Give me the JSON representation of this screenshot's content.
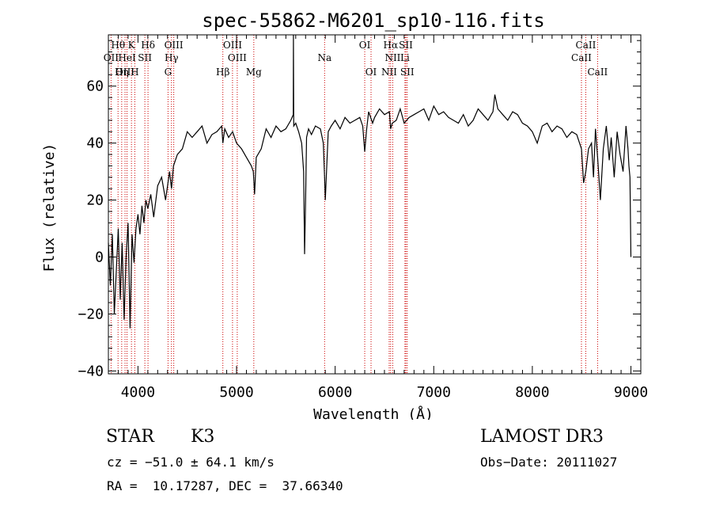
{
  "chart_data": {
    "type": "line",
    "title": "spec-55862-M6201_sp10-116.fits",
    "xlabel": "Wavelength (Å)",
    "ylabel": "Flux (relative)",
    "xlim": [
      3700,
      9100
    ],
    "ylim": [
      -41,
      78
    ],
    "xticks": [
      4000,
      5000,
      6000,
      7000,
      8000,
      9000
    ],
    "yticks": [
      -40,
      -20,
      0,
      20,
      40,
      60
    ],
    "spectrum": {
      "x": [
        3700,
        3720,
        3740,
        3760,
        3780,
        3800,
        3820,
        3840,
        3860,
        3880,
        3900,
        3920,
        3940,
        3960,
        3980,
        4000,
        4020,
        4040,
        4060,
        4080,
        4100,
        4130,
        4160,
        4200,
        4240,
        4280,
        4320,
        4340,
        4360,
        4400,
        4450,
        4500,
        4550,
        4600,
        4650,
        4700,
        4750,
        4800,
        4850,
        4861,
        4880,
        4920,
        4960,
        5000,
        5050,
        5100,
        5150,
        5170,
        5183,
        5200,
        5250,
        5300,
        5350,
        5400,
        5450,
        5500,
        5550,
        5575,
        5577,
        5580,
        5600,
        5630,
        5660,
        5680,
        5690,
        5700,
        5710,
        5730,
        5760,
        5800,
        5850,
        5880,
        5893,
        5900,
        5930,
        5960,
        6000,
        6050,
        6100,
        6150,
        6200,
        6250,
        6280,
        6300,
        6320,
        6340,
        6380,
        6400,
        6450,
        6500,
        6550,
        6563,
        6580,
        6620,
        6660,
        6700,
        6750,
        6800,
        6850,
        6900,
        6950,
        7000,
        7050,
        7100,
        7150,
        7200,
        7250,
        7300,
        7350,
        7400,
        7450,
        7500,
        7550,
        7600,
        7620,
        7650,
        7700,
        7750,
        7800,
        7850,
        7900,
        7950,
        8000,
        8050,
        8100,
        8150,
        8200,
        8250,
        8300,
        8350,
        8400,
        8450,
        8498,
        8520,
        8542,
        8570,
        8600,
        8620,
        8640,
        8662,
        8690,
        8720,
        8750,
        8780,
        8800,
        8830,
        8860,
        8890,
        8920,
        8950,
        8970,
        8980,
        8990,
        9000
      ],
      "y": [
        5,
        -10,
        8,
        -20,
        -5,
        10,
        -15,
        5,
        -22,
        0,
        12,
        -25,
        8,
        -2,
        10,
        15,
        8,
        18,
        12,
        20,
        17,
        22,
        14,
        25,
        28,
        20,
        30,
        24,
        32,
        36,
        38,
        44,
        42,
        44,
        46,
        40,
        43,
        44,
        46,
        40,
        45,
        42,
        44,
        40,
        38,
        35,
        32,
        30,
        22,
        35,
        38,
        45,
        42,
        46,
        44,
        45,
        48,
        50,
        78,
        46,
        47,
        44,
        40,
        30,
        1,
        20,
        42,
        45,
        43,
        46,
        45,
        40,
        28,
        20,
        44,
        46,
        48,
        45,
        49,
        47,
        48,
        49,
        46,
        37,
        45,
        51,
        47,
        49,
        52,
        50,
        51,
        45,
        47,
        48,
        52,
        47,
        49,
        50,
        51,
        52,
        48,
        53,
        50,
        51,
        49,
        48,
        47,
        50,
        46,
        48,
        52,
        50,
        48,
        51,
        57,
        52,
        50,
        48,
        51,
        50,
        47,
        46,
        44,
        40,
        46,
        47,
        44,
        46,
        45,
        42,
        44,
        43,
        38,
        26,
        30,
        38,
        40,
        28,
        45,
        35,
        20,
        38,
        46,
        34,
        42,
        28,
        44,
        36,
        30,
        46,
        38,
        32,
        28,
        0
      ]
    },
    "lines_row1": [
      {
        "label": "Hθ",
        "x": 3798
      },
      {
        "label": "K",
        "x": 3934
      },
      {
        "label": "Hδ",
        "x": 4102
      },
      {
        "label": "OIII",
        "x": 4363
      },
      {
        "label": "OIII",
        "x": 4959
      },
      {
        "label": "OI",
        "x": 6300
      },
      {
        "label": "Hα",
        "x": 6563
      },
      {
        "label": "SII",
        "x": 6717
      },
      {
        "label": "CaII",
        "x": 8542
      }
    ],
    "lines_row2": [
      {
        "label": "OII",
        "x": 3727
      },
      {
        "label": "HeI",
        "x": 3889
      },
      {
        "label": "SII",
        "x": 4070
      },
      {
        "label": "Hγ",
        "x": 4340
      },
      {
        "label": "OIII",
        "x": 5007
      },
      {
        "label": "Na",
        "x": 5893
      },
      {
        "label": "NII",
        "x": 6584
      },
      {
        "label": "Li",
        "x": 6708
      },
      {
        "label": "CaII",
        "x": 8498
      }
    ],
    "lines_row3": [
      {
        "label": "OIII",
        "x": 3869
      },
      {
        "label": "Hη",
        "x": 3835
      },
      {
        "label": "H",
        "x": 3968
      },
      {
        "label": "G",
        "x": 4305
      },
      {
        "label": "Hβ",
        "x": 4861
      },
      {
        "label": "Mg",
        "x": 5175
      },
      {
        "label": "OI",
        "x": 6364
      },
      {
        "label": "NII",
        "x": 6548
      },
      {
        "label": "SII",
        "x": 6731
      },
      {
        "label": "CaII",
        "x": 8662
      }
    ],
    "marker_positions": [
      3727,
      3798,
      3835,
      3869,
      3889,
      3934,
      3968,
      4070,
      4102,
      4305,
      4340,
      4363,
      4861,
      4959,
      5007,
      5175,
      5893,
      6300,
      6364,
      6548,
      6563,
      6584,
      6708,
      6717,
      6731,
      8498,
      8542,
      8662
    ],
    "colors": {
      "spectrum": "#000000",
      "markers": "#cc0000",
      "axes": "#000000"
    }
  },
  "info": {
    "class_label": "STAR",
    "subclass": "K3",
    "survey": "LAMOST DR3",
    "cz": "cz = −51.0 ± 64.1 km/s",
    "obs_date": "Obs−Date: 20111027",
    "radec": "RA =  10.17287, DEC =  37.66340"
  }
}
